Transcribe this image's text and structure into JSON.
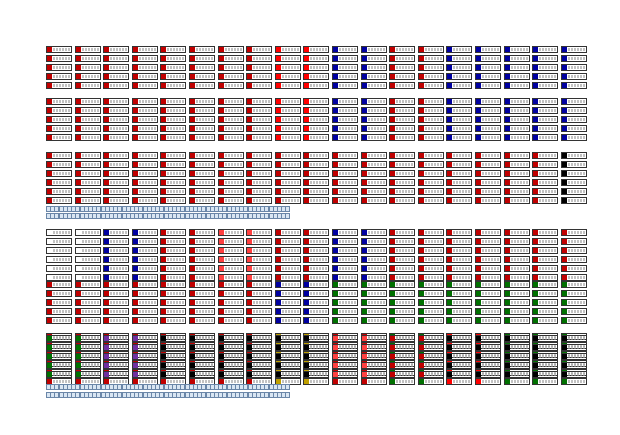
{
  "sheet": {
    "title": "",
    "description_visible_text": "",
    "rows": [
      {
        "name": "row-1",
        "colors": [
          "#c00000",
          "#c00000",
          "#c00000",
          "#c00000",
          "#c00000",
          "#c00000",
          "#c00000",
          "#c00000",
          "#ff0000",
          "#ff0000",
          "#0000a0",
          "#0000a0",
          "#c00000",
          "#c00000",
          "#0000a0",
          "#0000a0",
          "#0000a0",
          "#0000a0",
          "#0000a0",
          "#0000a0"
        ]
      },
      {
        "name": "row-2",
        "colors": [
          "#c00000",
          "#c00000",
          "#c00000",
          "#c00000",
          "#c00000",
          "#c00000",
          "#c00000",
          "#c00000",
          "#ff0000",
          "#ff0000",
          "#0000a0",
          "#0000a0",
          "#c00000",
          "#c00000",
          "#0000a0",
          "#0000a0",
          "#0000a0",
          "#0000a0",
          "#0000a0",
          "#0000a0"
        ]
      },
      {
        "name": "row-3",
        "colors": [
          "#c00000",
          "#c00000",
          "#c00000",
          "#c00000",
          "#c00000",
          "#c00000",
          "#c00000",
          "#c00000",
          "#c00000",
          "#c00000",
          "#c00000",
          "#c00000",
          "#c00000",
          "#c00000",
          "#c00000",
          "#c00000",
          "#c00000",
          "#c00000",
          "#000000",
          "#000000"
        ]
      },
      {
        "name": "row-4",
        "colors": [
          "#ffffff",
          "#ffffff",
          "#0000a0",
          "#0000a0",
          "#c00000",
          "#c00000",
          "#ff4040",
          "#ff4040",
          "#c00000",
          "#c00000",
          "#0000a0",
          "#0000a0",
          "#c00000",
          "#c00000",
          "#c00000",
          "#c00000",
          "#c00000",
          "#c00000",
          "#c00000",
          "#c00000"
        ]
      },
      {
        "name": "row-5",
        "colors": [
          "#c00000",
          "#c00000",
          "#c00000",
          "#c00000",
          "#c00000",
          "#c00000",
          "#c00000",
          "#c00000",
          "#0000a0",
          "#0000a0",
          "#007000",
          "#007000",
          "#007000",
          "#007000",
          "#007000",
          "#007000",
          "#007000",
          "#007000",
          "#007000",
          "#007000"
        ]
      },
      {
        "name": "row-6",
        "colors": [
          "#c00000",
          "#c00000",
          "#c00000",
          "#c00000",
          "#c00000",
          "#c00000",
          "#c00000",
          "#c00000",
          "#c0a000",
          "#c0a000",
          "#c00000",
          "#c00000",
          "#007000",
          "#007000",
          "#ff0000",
          "#ff0000",
          "#007000",
          "#007000",
          "#007000",
          "#007000"
        ]
      },
      {
        "name": "row-7",
        "colors": [
          "#007000",
          "#007000",
          "#7030a0",
          "#7030a0",
          "#000000",
          "#000000",
          "#000000",
          "#000000",
          "#000000",
          "#000000",
          "#ff4040",
          "#ff4040",
          "#c00000",
          "#c00000",
          "#000000",
          "#000000",
          "#000000",
          "#000000",
          "#000000",
          "#000000"
        ]
      }
    ],
    "strip_count": 58
  }
}
